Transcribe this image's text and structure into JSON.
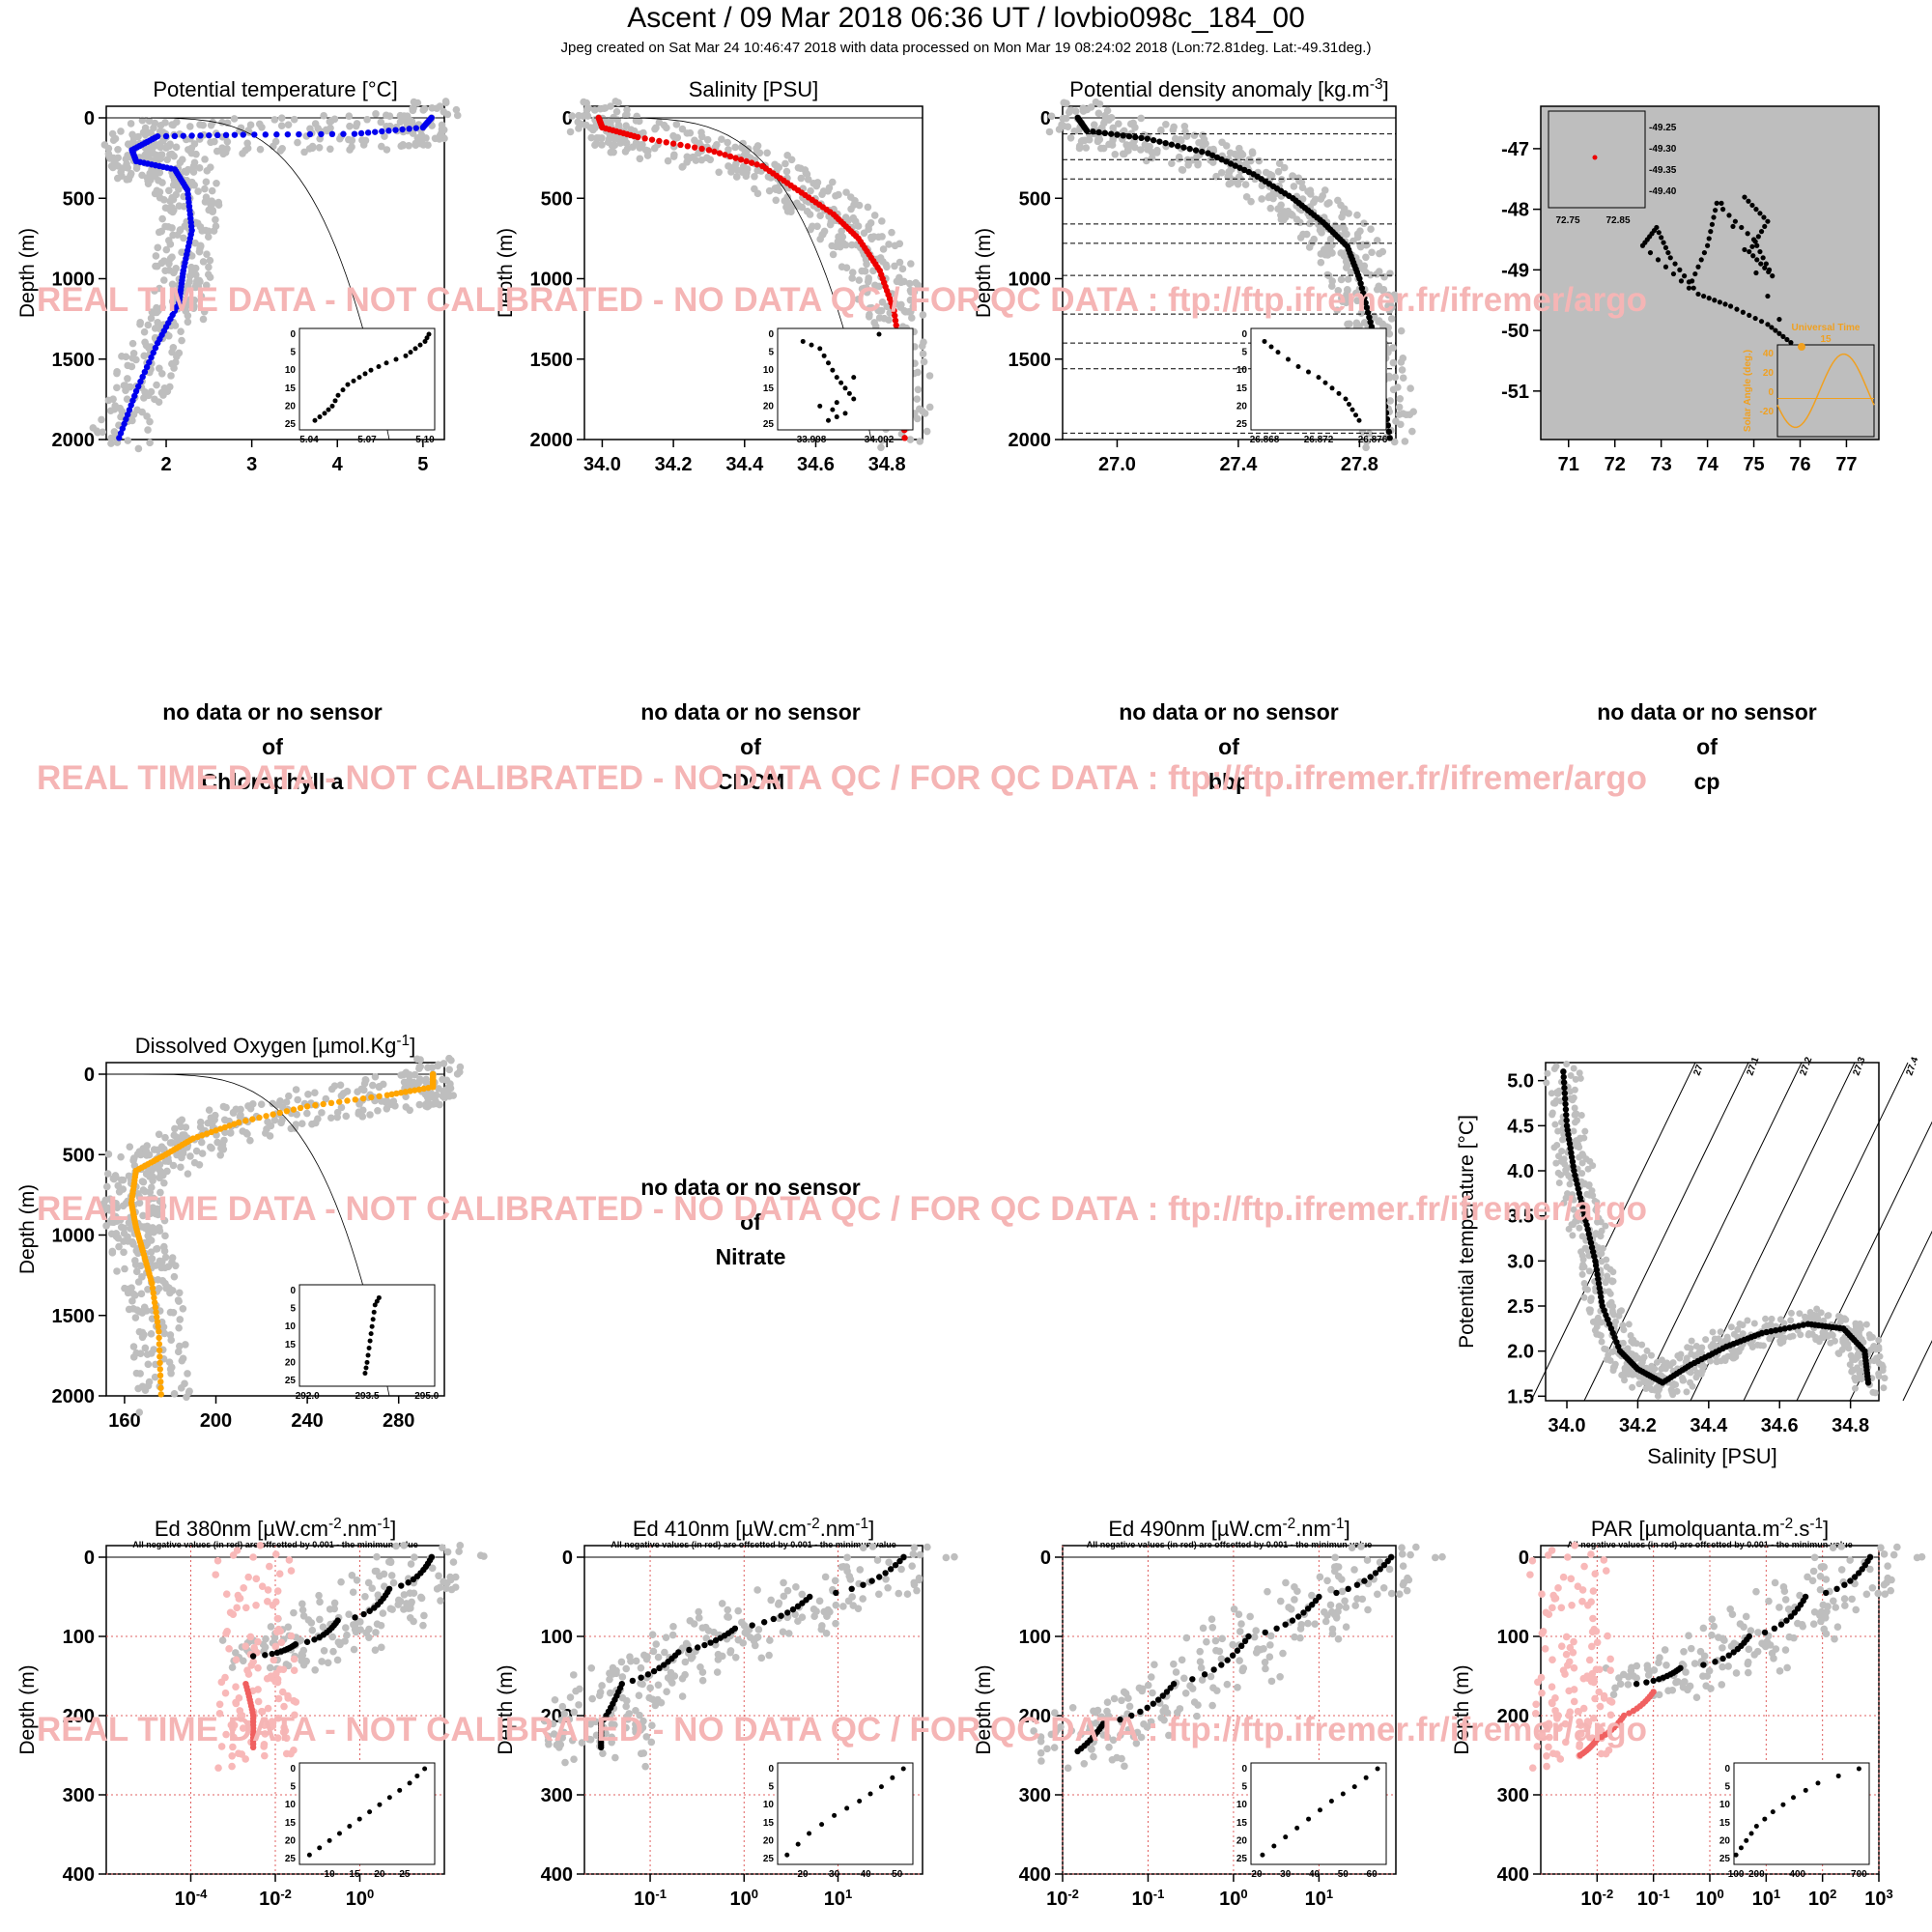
{
  "header": {
    "title": "Ascent / 09 Mar 2018 06:36 UT /  lovbio098c_184_00",
    "subtitle": "Jpeg created on Sat Mar 24 10:46:47 2018 with data processed on Mon Mar 19 08:24:02 2018 (Lon:72.81deg. Lat:-49.31deg.)"
  },
  "watermark": "REAL TIME DATA - NOT CALIBRATED - NO DATA QC   /  FOR QC DATA : ftp://ftp.ifremer.fr/ifremer/argo",
  "no_data": {
    "line1": "no data or no sensor",
    "line2": "of"
  },
  "no_data_panels": [
    "Chlorophyll a",
    "CDOM",
    "bbp",
    "cp",
    "Nitrate"
  ],
  "offset_note": "All negative values (in red) are offsetted by 0.001 - the minimun value",
  "depth_label": "Depth (m)",
  "colors": {
    "temp": "#0000ee",
    "sal": "#ee0000",
    "dens": "#000000",
    "oxy": "#ffa500",
    "grey": "#bebebe",
    "pink": "#f8b8b8",
    "light_red": "#f06060",
    "orange": "#f0a020"
  },
  "chart_data": [
    {
      "id": "temp",
      "type": "scatter",
      "title": "Potential temperature [°C]",
      "ylabel": "Depth (m)",
      "xticks": [
        "2",
        "3",
        "4",
        "5"
      ],
      "yticks": [
        "0",
        "500",
        "1000",
        "1500",
        "2000"
      ],
      "xlim": [
        1.3,
        5.25
      ],
      "ylim": [
        2000,
        0
      ],
      "series": [
        {
          "color": "#0000ee",
          "points": [
            [
              5.1,
              0
            ],
            [
              5.0,
              60
            ],
            [
              4.2,
              100
            ],
            [
              2.9,
              105
            ],
            [
              1.9,
              115
            ],
            [
              1.6,
              200
            ],
            [
              1.65,
              270
            ],
            [
              2.1,
              320
            ],
            [
              2.25,
              450
            ],
            [
              2.3,
              700
            ],
            [
              2.2,
              950
            ],
            [
              2.15,
              1150
            ],
            [
              1.9,
              1400
            ],
            [
              1.65,
              1700
            ],
            [
              1.45,
              1990
            ]
          ]
        }
      ],
      "inset": {
        "xticks": [
          "5.04",
          "5.07",
          "5.10"
        ],
        "yticks": [
          "0",
          "5",
          "10",
          "15",
          "20",
          "25"
        ],
        "xlim": [
          5.035,
          5.105
        ],
        "points": [
          [
            5.043,
            24
          ],
          [
            5.048,
            22
          ],
          [
            5.052,
            20
          ],
          [
            5.055,
            17
          ],
          [
            5.06,
            14
          ],
          [
            5.066,
            12
          ],
          [
            5.072,
            10
          ],
          [
            5.08,
            8
          ],
          [
            5.09,
            6
          ],
          [
            5.095,
            4
          ],
          [
            5.1,
            2
          ],
          [
            5.102,
            0
          ]
        ]
      }
    },
    {
      "id": "sal",
      "type": "scatter",
      "title": "Salinity [PSU]",
      "ylabel": "Depth (m)",
      "xticks": [
        "34.0",
        "34.2",
        "34.4",
        "34.6",
        "34.8"
      ],
      "yticks": [
        "0",
        "500",
        "1000",
        "1500",
        "2000"
      ],
      "xlim": [
        33.95,
        34.9
      ],
      "ylim": [
        2000,
        0
      ],
      "series": [
        {
          "color": "#ee0000",
          "points": [
            [
              33.99,
              0
            ],
            [
              34.0,
              60
            ],
            [
              34.1,
              120
            ],
            [
              34.3,
              200
            ],
            [
              34.45,
              300
            ],
            [
              34.55,
              450
            ],
            [
              34.65,
              600
            ],
            [
              34.72,
              750
            ],
            [
              34.78,
              950
            ],
            [
              34.82,
              1200
            ],
            [
              34.84,
              1500
            ],
            [
              34.85,
              1990
            ]
          ]
        }
      ],
      "inset": {
        "xticks": [
          "33.998",
          "34.002"
        ],
        "yticks": [
          "0",
          "5",
          "10",
          "15",
          "20",
          "25"
        ],
        "xlim": [
          33.996,
          34.004
        ],
        "points": [
          [
            33.9975,
            2
          ],
          [
            33.9985,
            4
          ],
          [
            33.999,
            8
          ],
          [
            33.9995,
            12
          ],
          [
            34.0,
            15
          ],
          [
            34.0005,
            18
          ],
          [
            33.9985,
            20
          ],
          [
            34.0,
            22
          ],
          [
            33.999,
            24
          ],
          [
            34.002,
            0
          ]
        ]
      }
    },
    {
      "id": "dens",
      "type": "scatter",
      "title": "Potential density anomaly [kg.m^-3]",
      "ylabel": "Depth (m)",
      "xticks": [
        "27.0",
        "27.4",
        "27.8"
      ],
      "yticks": [
        "0",
        "500",
        "1000",
        "1500",
        "2000"
      ],
      "xlim": [
        26.82,
        27.92
      ],
      "ylim": [
        2000,
        0
      ],
      "series": [
        {
          "color": "#000000",
          "points": [
            [
              26.87,
              0
            ],
            [
              26.9,
              80
            ],
            [
              27.1,
              130
            ],
            [
              27.3,
              220
            ],
            [
              27.45,
              350
            ],
            [
              27.58,
              500
            ],
            [
              27.68,
              650
            ],
            [
              27.76,
              800
            ],
            [
              27.8,
              1000
            ],
            [
              27.84,
              1300
            ],
            [
              27.87,
              1600
            ],
            [
              27.9,
              1990
            ]
          ]
        }
      ],
      "inset": {
        "xticks": [
          "26.868",
          "26.872",
          "26.876"
        ],
        "yticks": [
          "0",
          "5",
          "10",
          "15",
          "20",
          "25"
        ],
        "xlim": [
          26.867,
          26.877
        ],
        "points": [
          [
            26.868,
            2
          ],
          [
            26.869,
            5
          ],
          [
            26.8705,
            9
          ],
          [
            26.872,
            12
          ],
          [
            26.873,
            15
          ],
          [
            26.874,
            18
          ],
          [
            26.8745,
            21
          ],
          [
            26.875,
            24
          ]
        ]
      }
    },
    {
      "id": "map",
      "type": "scatter",
      "title": "",
      "xticks": [
        "71",
        "72",
        "73",
        "74",
        "75",
        "76",
        "77"
      ],
      "yticks": [
        "-47",
        "-48",
        "-49",
        "-50",
        "-51"
      ],
      "xlim": [
        70.4,
        77.7
      ],
      "ylim": [
        -51.8,
        -46.3
      ],
      "inset_yticks": [
        "-49.25",
        "-49.30",
        "-49.35",
        "-49.40"
      ],
      "inset_xticks": [
        "72.75",
        "72.85"
      ],
      "time_inset": {
        "label": "Universal Time",
        "yaxis": "Solar Angle (deg.)",
        "hour": "15",
        "yticks": [
          "40",
          "20",
          "0",
          "-20"
        ]
      }
    },
    {
      "id": "oxy",
      "type": "scatter",
      "title": "Dissolved Oxygen [µmol.Kg^-1]",
      "ylabel": "Depth (m)",
      "xticks": [
        "160",
        "200",
        "240",
        "280"
      ],
      "yticks": [
        "0",
        "500",
        "1000",
        "1500",
        "2000"
      ],
      "xlim": [
        152,
        300
      ],
      "ylim": [
        2000,
        0
      ],
      "series": [
        {
          "color": "#ffa500",
          "points": [
            [
              295,
              0
            ],
            [
              295,
              80
            ],
            [
              275,
              130
            ],
            [
              240,
              200
            ],
            [
              210,
              300
            ],
            [
              190,
              400
            ],
            [
              178,
              500
            ],
            [
              165,
              600
            ],
            [
              163,
              800
            ],
            [
              165,
              950
            ],
            [
              168,
              1100
            ],
            [
              172,
              1300
            ],
            [
              175,
              1600
            ],
            [
              176,
              1990
            ]
          ]
        }
      ],
      "inset": {
        "xticks": [
          "292.0",
          "293.5",
          "295.0"
        ],
        "yticks": [
          "0",
          "5",
          "10",
          "15",
          "20",
          "25"
        ],
        "xlim": [
          291.8,
          295.2
        ],
        "points": [
          [
            293.8,
            2
          ],
          [
            293.7,
            4
          ],
          [
            293.65,
            8
          ],
          [
            293.6,
            12
          ],
          [
            293.55,
            16
          ],
          [
            293.5,
            20
          ],
          [
            293.45,
            23
          ]
        ]
      }
    },
    {
      "id": "ts",
      "type": "scatter",
      "title": "",
      "xlabel": "Salinity [PSU]",
      "ylabel": "Potential temperature [°C]",
      "xticks": [
        "34.0",
        "34.2",
        "34.4",
        "34.6",
        "34.8"
      ],
      "yticks": [
        "1.5",
        "2.0",
        "2.5",
        "3.0",
        "3.5",
        "4.0",
        "4.5",
        "5.0"
      ],
      "xlim": [
        33.94,
        34.88
      ],
      "ylim": [
        1.45,
        5.2
      ],
      "isopycnals": [
        "27",
        "27.1",
        "27.2",
        "27.3",
        "27.4",
        "27.5",
        "27.6",
        "27.7",
        "27.8"
      ],
      "series": [
        {
          "color": "#000000",
          "points": [
            [
              33.99,
              5.1
            ],
            [
              34.0,
              4.5
            ],
            [
              34.02,
              4.0
            ],
            [
              34.05,
              3.5
            ],
            [
              34.08,
              3.0
            ],
            [
              34.1,
              2.5
            ],
            [
              34.15,
              2.0
            ],
            [
              34.2,
              1.8
            ],
            [
              34.27,
              1.65
            ],
            [
              34.35,
              1.85
            ],
            [
              34.45,
              2.05
            ],
            [
              34.55,
              2.2
            ],
            [
              34.68,
              2.3
            ],
            [
              34.78,
              2.25
            ],
            [
              34.84,
              2.0
            ],
            [
              34.85,
              1.65
            ]
          ]
        }
      ]
    },
    {
      "id": "ed380",
      "type": "scatter",
      "title": "Ed 380nm [µW.cm^-2.nm^-1]",
      "ylabel": "Depth (m)",
      "log": true,
      "xticks": [
        "10^-4",
        "10^-2",
        "10^0"
      ],
      "yticks": [
        "0",
        "100",
        "200",
        "300",
        "400"
      ],
      "xexp": [
        -6,
        2
      ],
      "ylim": [
        400,
        0
      ],
      "series": [
        {
          "color": "#000000",
          "points": [
            [
              50,
              0
            ],
            [
              5,
              40
            ],
            [
              0.3,
              80
            ],
            [
              0.03,
              110
            ],
            [
              0.003,
              125
            ]
          ]
        },
        {
          "color": "#f06060",
          "points": [
            [
              0.002,
              160
            ],
            [
              0.003,
              200
            ],
            [
              0.003,
              240
            ]
          ]
        }
      ],
      "inset": {
        "xticks": [
          "10",
          "15",
          "20",
          "25"
        ],
        "yticks": [
          "0",
          "5",
          "10",
          "15",
          "20",
          "25"
        ],
        "xlim": [
          4,
          31
        ],
        "points": [
          [
            6,
            24
          ],
          [
            10,
            20
          ],
          [
            14,
            16
          ],
          [
            18,
            12
          ],
          [
            22,
            8
          ],
          [
            26,
            4
          ],
          [
            29,
            0
          ]
        ]
      }
    },
    {
      "id": "ed410",
      "type": "scatter",
      "title": "Ed 410nm [µW.cm^-2.nm^-1]",
      "ylabel": "Depth (m)",
      "log": true,
      "xticks": [
        "10^-1",
        "10^0",
        "10^1"
      ],
      "yticks": [
        "0",
        "100",
        "200",
        "300",
        "400"
      ],
      "xexp": [
        -1.7,
        1.9
      ],
      "ylim": [
        400,
        0
      ],
      "series": [
        {
          "color": "#000000",
          "points": [
            [
              50,
              0
            ],
            [
              5,
              50
            ],
            [
              0.8,
              90
            ],
            [
              0.2,
              120
            ],
            [
              0.05,
              160
            ],
            [
              0.03,
              210
            ],
            [
              0.03,
              240
            ]
          ]
        }
      ],
      "inset": {
        "xticks": [
          "20",
          "30",
          "40",
          "50"
        ],
        "yticks": [
          "0",
          "5",
          "10",
          "15",
          "20",
          "25"
        ],
        "xlim": [
          12,
          55
        ],
        "points": [
          [
            15,
            24
          ],
          [
            22,
            18
          ],
          [
            30,
            13
          ],
          [
            38,
            9
          ],
          [
            45,
            5
          ],
          [
            52,
            0
          ]
        ]
      }
    },
    {
      "id": "ed490",
      "type": "scatter",
      "title": "Ed 490nm [µW.cm^-2.nm^-1]",
      "ylabel": "Depth (m)",
      "log": true,
      "xticks": [
        "10^-2",
        "10^-1",
        "10^0",
        "10^1"
      ],
      "yticks": [
        "0",
        "100",
        "200",
        "300",
        "400"
      ],
      "xexp": [
        -2,
        1.9
      ],
      "ylim": [
        400,
        0
      ],
      "series": [
        {
          "color": "#000000",
          "points": [
            [
              70,
              0
            ],
            [
              10,
              50
            ],
            [
              1.5,
              100
            ],
            [
              0.2,
              160
            ],
            [
              0.03,
              210
            ],
            [
              0.015,
              245
            ]
          ]
        }
      ],
      "inset": {
        "xticks": [
          "20",
          "30",
          "40",
          "50",
          "60"
        ],
        "yticks": [
          "0",
          "5",
          "10",
          "15",
          "20",
          "25"
        ],
        "xlim": [
          18,
          65
        ],
        "points": [
          [
            22,
            24
          ],
          [
            30,
            19
          ],
          [
            38,
            14
          ],
          [
            46,
            9
          ],
          [
            54,
            5
          ],
          [
            62,
            0
          ]
        ]
      }
    },
    {
      "id": "par",
      "type": "scatter",
      "title": "PAR [µmolquanta.m^-2.s^-1]",
      "ylabel": "Depth (m)",
      "log": true,
      "xticks": [
        "10^-2",
        "10^-1",
        "10^0",
        "10^1",
        "10^2",
        "10^3"
      ],
      "yticks": [
        "0",
        "100",
        "200",
        "300",
        "400"
      ],
      "xexp": [
        -3,
        3
      ],
      "ylim": [
        400,
        0
      ],
      "series": [
        {
          "color": "#000000",
          "points": [
            [
              700,
              0
            ],
            [
              50,
              50
            ],
            [
              5,
              100
            ],
            [
              0.3,
              140
            ],
            [
              0.05,
              160
            ]
          ]
        },
        {
          "color": "#f06060",
          "points": [
            [
              0.1,
              170
            ],
            [
              0.03,
              200
            ],
            [
              0.01,
              230
            ],
            [
              0.005,
              250
            ]
          ]
        }
      ],
      "inset": {
        "xticks": [
          "100",
          "200",
          "400",
          "700"
        ],
        "yticks": [
          "0",
          "5",
          "10",
          "15",
          "20",
          "25"
        ],
        "xlim": [
          90,
          750
        ],
        "points": [
          [
            100,
            24
          ],
          [
            150,
            20
          ],
          [
            200,
            16
          ],
          [
            280,
            12
          ],
          [
            380,
            8
          ],
          [
            500,
            4
          ],
          [
            700,
            0
          ]
        ]
      }
    }
  ]
}
